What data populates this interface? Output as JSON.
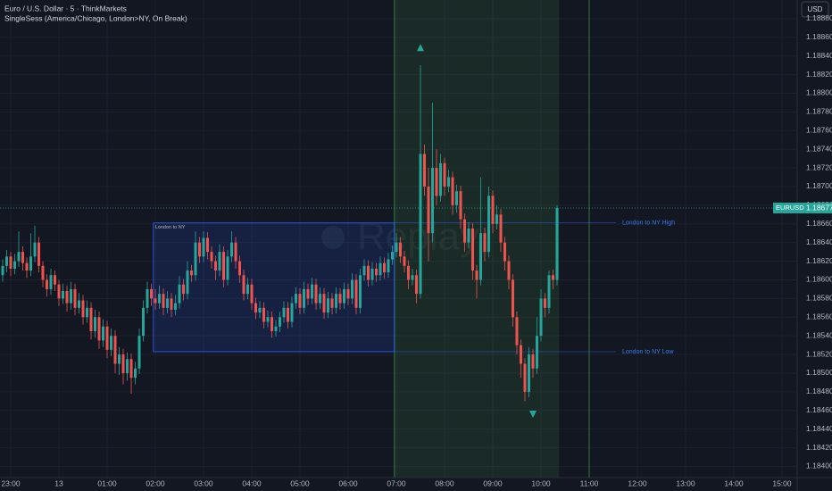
{
  "chart_data": {
    "type": "candlestick",
    "title": "Euro / U.S. Dollar · 5 · ThinkMarkets",
    "subtitle": "SingleSess (America/Chicago, London>NY, On Break)",
    "currency": "USD",
    "watermark": "Replay",
    "up_color": "#26a69a",
    "down_color": "#ef5350",
    "xlim": [
      0.33,
      198.78
    ],
    "ylim": [
      1.18388,
      1.189
    ],
    "xticks": [
      {
        "value": 3,
        "label": "23:00"
      },
      {
        "value": 15,
        "label": "13"
      },
      {
        "value": 27,
        "label": "01:00"
      },
      {
        "value": 39,
        "label": "02:00"
      },
      {
        "value": 51,
        "label": "03:00"
      },
      {
        "value": 63,
        "label": "04:00"
      },
      {
        "value": 75,
        "label": "05:00"
      },
      {
        "value": 87,
        "label": "06:00"
      },
      {
        "value": 99,
        "label": "07:00"
      },
      {
        "value": 111,
        "label": "08:00"
      },
      {
        "value": 123,
        "label": "09:00"
      },
      {
        "value": 135,
        "label": "10:00"
      },
      {
        "value": 147,
        "label": "11:00"
      },
      {
        "value": 159,
        "label": "12:00"
      },
      {
        "value": 171,
        "label": "13:00"
      },
      {
        "value": 183,
        "label": "14:00"
      },
      {
        "value": 195,
        "label": "15:00"
      }
    ],
    "yticks": [
      {
        "value": 1.184,
        "label": "1.18400"
      },
      {
        "value": 1.1842,
        "label": "1.18420"
      },
      {
        "value": 1.1844,
        "label": "1.18440"
      },
      {
        "value": 1.1846,
        "label": "1.18460"
      },
      {
        "value": 1.1848,
        "label": "1.18480"
      },
      {
        "value": 1.185,
        "label": "1.18500"
      },
      {
        "value": 1.1852,
        "label": "1.18520"
      },
      {
        "value": 1.1854,
        "label": "1.18540"
      },
      {
        "value": 1.1856,
        "label": "1.18560"
      },
      {
        "value": 1.1858,
        "label": "1.18580"
      },
      {
        "value": 1.186,
        "label": "1.18600"
      },
      {
        "value": 1.1862,
        "label": "1.18620"
      },
      {
        "value": 1.1864,
        "label": "1.18640"
      },
      {
        "value": 1.1866,
        "label": "1.18660"
      },
      {
        "value": 1.1868,
        "label": "1.18680"
      },
      {
        "value": 1.187,
        "label": "1.18700"
      },
      {
        "value": 1.1872,
        "label": "1.18720"
      },
      {
        "value": 1.1874,
        "label": "1.18740"
      },
      {
        "value": 1.1876,
        "label": "1.18760"
      },
      {
        "value": 1.1878,
        "label": "1.18780"
      },
      {
        "value": 1.188,
        "label": "1.18800"
      },
      {
        "value": 1.1882,
        "label": "1.18820"
      },
      {
        "value": 1.1884,
        "label": "1.18840"
      },
      {
        "value": 1.1886,
        "label": "1.18860"
      },
      {
        "value": 1.1888,
        "label": "1.18880"
      }
    ],
    "price_tag": {
      "symbol": "EURUSD",
      "value": 1.18677
    },
    "session": {
      "start": 99,
      "end": 139,
      "close_line": 147
    },
    "range_box": {
      "label": "London to NY",
      "start": 39,
      "end": 98.5,
      "high": 1.18661,
      "low": 1.18523,
      "high_label": "London to NY High",
      "low_label": "London to NY Low"
    },
    "markers": [
      {
        "index": 105,
        "direction": "up",
        "value": 1.18849
      },
      {
        "index": 133,
        "direction": "down",
        "value": 1.18456
      }
    ],
    "ohlc": [
      [
        1.18598,
        1.18612,
        1.1859,
        1.18605
      ],
      [
        1.18605,
        1.18622,
        1.18598,
        1.18615
      ],
      [
        1.18615,
        1.18632,
        1.18608,
        1.18625
      ],
      [
        1.18625,
        1.1863,
        1.18604,
        1.18612
      ],
      [
        1.18612,
        1.18628,
        1.18606,
        1.1862
      ],
      [
        1.1862,
        1.18652,
        1.18614,
        1.1863
      ],
      [
        1.1863,
        1.18636,
        1.1861,
        1.18618
      ],
      [
        1.18618,
        1.18624,
        1.18602,
        1.1861
      ],
      [
        1.1861,
        1.1865,
        1.18604,
        1.18625
      ],
      [
        1.18625,
        1.18658,
        1.18619,
        1.1864
      ],
      [
        1.1864,
        1.18646,
        1.18608,
        1.18615
      ],
      [
        1.18615,
        1.1862,
        1.18592,
        1.186
      ],
      [
        1.186,
        1.18606,
        1.18582,
        1.1859
      ],
      [
        1.1859,
        1.18612,
        1.18584,
        1.18605
      ],
      [
        1.18605,
        1.1861,
        1.18588,
        1.18595
      ],
      [
        1.18595,
        1.186,
        1.18572,
        1.1858
      ],
      [
        1.1858,
        1.18596,
        1.18574,
        1.18588
      ],
      [
        1.18588,
        1.18594,
        1.18566,
        1.18575
      ],
      [
        1.18575,
        1.18598,
        1.18568,
        1.1859
      ],
      [
        1.1859,
        1.18596,
        1.18562,
        1.1857
      ],
      [
        1.1857,
        1.18586,
        1.18564,
        1.18578
      ],
      [
        1.18578,
        1.18584,
        1.18552,
        1.1856
      ],
      [
        1.1856,
        1.18578,
        1.18554,
        1.1857
      ],
      [
        1.1857,
        1.18576,
        1.18536,
        1.18545
      ],
      [
        1.18545,
        1.18568,
        1.18538,
        1.1856
      ],
      [
        1.1856,
        1.18566,
        1.18526,
        1.18535
      ],
      [
        1.18535,
        1.18558,
        1.18528,
        1.1855
      ],
      [
        1.1855,
        1.18556,
        1.18516,
        1.18525
      ],
      [
        1.18525,
        1.18548,
        1.18518,
        1.1854
      ],
      [
        1.1854,
        1.18546,
        1.185,
        1.1851
      ],
      [
        1.1851,
        1.18528,
        1.18498,
        1.1852
      ],
      [
        1.1852,
        1.18526,
        1.18488,
        1.185
      ],
      [
        1.185,
        1.18522,
        1.18492,
        1.18515
      ],
      [
        1.18515,
        1.18521,
        1.18478,
        1.18495
      ],
      [
        1.18495,
        1.18512,
        1.18488,
        1.18505
      ],
      [
        1.18505,
        1.18548,
        1.18499,
        1.1854
      ],
      [
        1.1854,
        1.18578,
        1.18534,
        1.1857
      ],
      [
        1.1857,
        1.18598,
        1.18564,
        1.1859
      ],
      [
        1.1859,
        1.18596,
        1.18572,
        1.1858
      ],
      [
        1.1858,
        1.1859,
        1.18568,
        1.18575
      ],
      [
        1.18575,
        1.18594,
        1.18569,
        1.18585
      ],
      [
        1.18585,
        1.18591,
        1.18562,
        1.1857
      ],
      [
        1.1857,
        1.18588,
        1.18564,
        1.1858
      ],
      [
        1.1858,
        1.18586,
        1.1856,
        1.18568
      ],
      [
        1.18568,
        1.18584,
        1.18562,
        1.18575
      ],
      [
        1.18575,
        1.18604,
        1.18569,
        1.18595
      ],
      [
        1.18595,
        1.18601,
        1.18578,
        1.18585
      ],
      [
        1.18585,
        1.1862,
        1.18579,
        1.1861
      ],
      [
        1.1861,
        1.18616,
        1.18598,
        1.18605
      ],
      [
        1.18605,
        1.18652,
        1.18599,
        1.1864
      ],
      [
        1.1864,
        1.18646,
        1.18618,
        1.18625
      ],
      [
        1.18625,
        1.18652,
        1.18619,
        1.18645
      ],
      [
        1.18645,
        1.18651,
        1.18622,
        1.1863
      ],
      [
        1.1863,
        1.18636,
        1.18612,
        1.1862
      ],
      [
        1.1862,
        1.18626,
        1.186,
        1.1861
      ],
      [
        1.1861,
        1.18638,
        1.18604,
        1.1863
      ],
      [
        1.1863,
        1.18636,
        1.18592,
        1.186
      ],
      [
        1.186,
        1.18632,
        1.18594,
        1.18625
      ],
      [
        1.18625,
        1.18652,
        1.18619,
        1.1864
      ],
      [
        1.1864,
        1.18646,
        1.18612,
        1.1862
      ],
      [
        1.1862,
        1.18626,
        1.18597,
        1.18605
      ],
      [
        1.18605,
        1.18611,
        1.18578,
        1.18585
      ],
      [
        1.18585,
        1.18602,
        1.18579,
        1.18595
      ],
      [
        1.18595,
        1.18601,
        1.18568,
        1.18575
      ],
      [
        1.18575,
        1.18581,
        1.18558,
        1.18565
      ],
      [
        1.18565,
        1.18577,
        1.18559,
        1.1857
      ],
      [
        1.1857,
        1.18576,
        1.18548,
        1.18555
      ],
      [
        1.18555,
        1.18567,
        1.18549,
        1.1856
      ],
      [
        1.1856,
        1.18566,
        1.18538,
        1.18545
      ],
      [
        1.18545,
        1.18557,
        1.18539,
        1.1855
      ],
      [
        1.1855,
        1.18566,
        1.18544,
        1.1856
      ],
      [
        1.1856,
        1.18577,
        1.18554,
        1.1857
      ],
      [
        1.1857,
        1.18576,
        1.18548,
        1.18555
      ],
      [
        1.18555,
        1.18582,
        1.18549,
        1.18575
      ],
      [
        1.18575,
        1.18592,
        1.18569,
        1.18585
      ],
      [
        1.18585,
        1.18591,
        1.18563,
        1.1857
      ],
      [
        1.1857,
        1.18598,
        1.18564,
        1.1859
      ],
      [
        1.1859,
        1.18596,
        1.18573,
        1.1858
      ],
      [
        1.1858,
        1.18602,
        1.18574,
        1.18595
      ],
      [
        1.18595,
        1.18601,
        1.18568,
        1.18575
      ],
      [
        1.18575,
        1.18592,
        1.18569,
        1.18585
      ],
      [
        1.18585,
        1.18591,
        1.18558,
        1.18565
      ],
      [
        1.18565,
        1.18587,
        1.18559,
        1.1858
      ],
      [
        1.1858,
        1.18586,
        1.18563,
        1.1857
      ],
      [
        1.1857,
        1.18592,
        1.18564,
        1.18585
      ],
      [
        1.18585,
        1.18591,
        1.18568,
        1.18575
      ],
      [
        1.18575,
        1.18597,
        1.18569,
        1.1859
      ],
      [
        1.1859,
        1.18596,
        1.18573,
        1.1858
      ],
      [
        1.1858,
        1.18607,
        1.18574,
        1.186
      ],
      [
        1.186,
        1.18606,
        1.18563,
        1.1857
      ],
      [
        1.1857,
        1.18612,
        1.18564,
        1.18605
      ],
      [
        1.18605,
        1.18622,
        1.18599,
        1.18615
      ],
      [
        1.18615,
        1.18621,
        1.18593,
        1.186
      ],
      [
        1.186,
        1.18619,
        1.18594,
        1.18612
      ],
      [
        1.18612,
        1.18618,
        1.18598,
        1.18605
      ],
      [
        1.18605,
        1.18625,
        1.18599,
        1.18618
      ],
      [
        1.18618,
        1.18624,
        1.18601,
        1.18608
      ],
      [
        1.18608,
        1.18629,
        1.18602,
        1.18622
      ],
      [
        1.18622,
        1.18637,
        1.18616,
        1.1863
      ],
      [
        1.1863,
        1.1865,
        1.18624,
        1.1864
      ],
      [
        1.1864,
        1.18646,
        1.18618,
        1.18625
      ],
      [
        1.18625,
        1.18631,
        1.18608,
        1.18615
      ],
      [
        1.18615,
        1.18621,
        1.1859,
        1.186
      ],
      [
        1.186,
        1.18612,
        1.18594,
        1.18605
      ],
      [
        1.18605,
        1.18611,
        1.18575,
        1.18585
      ],
      [
        1.18585,
        1.1883,
        1.1858,
        1.18735
      ],
      [
        1.18735,
        1.18745,
        1.1869,
        1.187
      ],
      [
        1.187,
        1.1872,
        1.1862,
        1.1865
      ],
      [
        1.1865,
        1.1879,
        1.1864,
        1.1872
      ],
      [
        1.1872,
        1.1874,
        1.1868,
        1.1869
      ],
      [
        1.1869,
        1.18735,
        1.18684,
        1.18725
      ],
      [
        1.18725,
        1.18731,
        1.1869,
        1.187
      ],
      [
        1.187,
        1.18718,
        1.18694,
        1.1871
      ],
      [
        1.1871,
        1.18716,
        1.1867,
        1.1868
      ],
      [
        1.1868,
        1.18702,
        1.18672,
        1.18695
      ],
      [
        1.18695,
        1.18701,
        1.18655,
        1.18665
      ],
      [
        1.18665,
        1.18671,
        1.1863,
        1.1864
      ],
      [
        1.1864,
        1.18662,
        1.18634,
        1.18655
      ],
      [
        1.18655,
        1.18661,
        1.186,
        1.1861
      ],
      [
        1.1861,
        1.18616,
        1.1858,
        1.186
      ],
      [
        1.186,
        1.1871,
        1.18594,
        1.1865
      ],
      [
        1.1865,
        1.18656,
        1.1862,
        1.1863
      ],
      [
        1.1863,
        1.187,
        1.18624,
        1.1869
      ],
      [
        1.1869,
        1.18696,
        1.1865,
        1.1866
      ],
      [
        1.1866,
        1.1868,
        1.18654,
        1.1867
      ],
      [
        1.1867,
        1.18676,
        1.1863,
        1.1864
      ],
      [
        1.1864,
        1.18646,
        1.1861,
        1.1862
      ],
      [
        1.1862,
        1.18626,
        1.1859,
        1.186
      ],
      [
        1.186,
        1.18606,
        1.1855,
        1.1856
      ],
      [
        1.1856,
        1.18566,
        1.1852,
        1.1853
      ],
      [
        1.1853,
        1.18536,
        1.18495,
        1.1851
      ],
      [
        1.1851,
        1.18516,
        1.1847,
        1.1848
      ],
      [
        1.1848,
        1.18528,
        1.18474,
        1.1852
      ],
      [
        1.1852,
        1.18526,
        1.18495,
        1.18505
      ],
      [
        1.18505,
        1.1856,
        1.18499,
        1.1854
      ],
      [
        1.1854,
        1.1859,
        1.18534,
        1.1858
      ],
      [
        1.1858,
        1.18586,
        1.1856,
        1.1857
      ],
      [
        1.1857,
        1.1861,
        1.18564,
        1.18605
      ],
      [
        1.18605,
        1.18611,
        1.1859,
        1.186
      ],
      [
        1.186,
        1.1868,
        1.18594,
        1.18677
      ]
    ]
  }
}
